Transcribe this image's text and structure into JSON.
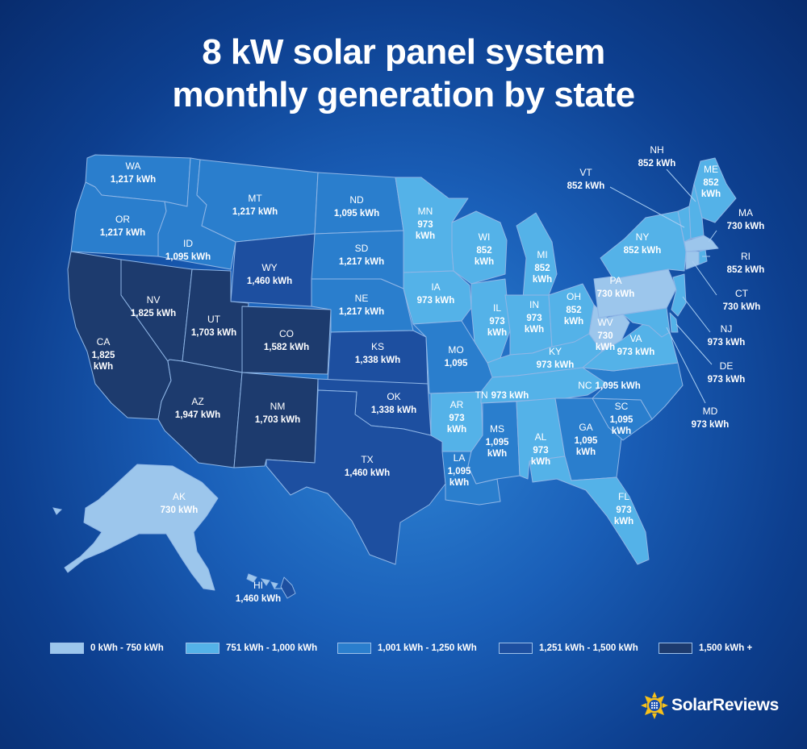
{
  "title": {
    "line1": "8 kW solar panel system",
    "line2": "monthly generation by state"
  },
  "colors": {
    "c1": "#9cc6ec",
    "c2": "#54b2e8",
    "c3": "#2a7ecd",
    "c4": "#1d4fa0",
    "c5": "#1d3b6e",
    "background": "#1a5fb8"
  },
  "legend": [
    {
      "label": "0 kWh  - 750 kWh",
      "bin": "c1"
    },
    {
      "label": "751 kWh - 1,000 kWh",
      "bin": "c2"
    },
    {
      "label": "1,001 kWh  - 1,250 kWh",
      "bin": "c3"
    },
    {
      "label": "1,251 kWh  - 1,500 kWh",
      "bin": "c4"
    },
    {
      "label": "1,500 kWh +",
      "bin": "c5"
    }
  ],
  "states": {
    "WA": {
      "abbr": "WA",
      "value": "1,217 kWh",
      "bin": "c3"
    },
    "OR": {
      "abbr": "OR",
      "value": "1,217 kWh",
      "bin": "c3"
    },
    "CA": {
      "abbr": "CA",
      "value_lines": [
        "1,825",
        "kWh"
      ],
      "bin": "c5"
    },
    "ID": {
      "abbr": "ID",
      "value": "1,095 kWh",
      "bin": "c3"
    },
    "NV": {
      "abbr": "NV",
      "value": "1,825 kWh",
      "bin": "c5"
    },
    "MT": {
      "abbr": "MT",
      "value": "1,217 kWh",
      "bin": "c3"
    },
    "WY": {
      "abbr": "WY",
      "value": "1,460 kWh",
      "bin": "c4"
    },
    "UT": {
      "abbr": "UT",
      "value": "1,703 kWh",
      "bin": "c5"
    },
    "CO": {
      "abbr": "CO",
      "value": "1,582 kWh",
      "bin": "c5"
    },
    "AZ": {
      "abbr": "AZ",
      "value": "1,947 kWh",
      "bin": "c5"
    },
    "NM": {
      "abbr": "NM",
      "value": "1,703 kWh",
      "bin": "c5"
    },
    "ND": {
      "abbr": "ND",
      "value": "1,095 kWh",
      "bin": "c3"
    },
    "SD": {
      "abbr": "SD",
      "value": "1,217 kWh",
      "bin": "c3"
    },
    "NE": {
      "abbr": "NE",
      "value": "1,217 kWh",
      "bin": "c3"
    },
    "KS": {
      "abbr": "KS",
      "value": "1,338 kWh",
      "bin": "c4"
    },
    "OK": {
      "abbr": "OK",
      "value": "1,338 kWh",
      "bin": "c4"
    },
    "TX": {
      "abbr": "TX",
      "value": "1,460 kWh",
      "bin": "c4"
    },
    "MN": {
      "abbr": "MN",
      "value_lines": [
        "973",
        "kWh"
      ],
      "bin": "c2"
    },
    "IA": {
      "abbr": "IA",
      "value": "973 kWh",
      "bin": "c2"
    },
    "MO": {
      "abbr": "MO",
      "value": "1,095",
      "bin": "c3"
    },
    "AR": {
      "abbr": "AR",
      "value_lines": [
        "973",
        "kWh"
      ],
      "bin": "c2"
    },
    "LA": {
      "abbr": "LA",
      "value_lines": [
        "1,095",
        "kWh"
      ],
      "bin": "c3"
    },
    "WI": {
      "abbr": "WI",
      "value_lines": [
        "852",
        "kWh"
      ],
      "bin": "c2"
    },
    "IL": {
      "abbr": "IL",
      "value_lines": [
        "973",
        "kWh"
      ],
      "bin": "c2"
    },
    "MI": {
      "abbr": "MI",
      "value_lines": [
        "852",
        "kWh"
      ],
      "bin": "c2"
    },
    "IN": {
      "abbr": "IN",
      "value_lines": [
        "973",
        "kWh"
      ],
      "bin": "c2"
    },
    "OH": {
      "abbr": "OH",
      "value_lines": [
        "852",
        "kWh"
      ],
      "bin": "c2"
    },
    "KY": {
      "abbr": "KY",
      "value": "973 kWh",
      "bin": "c2"
    },
    "TN": {
      "abbr": "TN",
      "value": "973 kWh",
      "bin": "c2"
    },
    "MS": {
      "abbr": "MS",
      "value_lines": [
        "1,095",
        "kWh"
      ],
      "bin": "c3"
    },
    "AL": {
      "abbr": "AL",
      "value_lines": [
        "973",
        "kWh"
      ],
      "bin": "c2"
    },
    "GA": {
      "abbr": "GA",
      "value_lines": [
        "1,095",
        "kWh"
      ],
      "bin": "c3"
    },
    "FL": {
      "abbr": "FL",
      "value_lines": [
        "973",
        "kWh"
      ],
      "bin": "c2"
    },
    "SC": {
      "abbr": "SC",
      "value_lines": [
        "1,095",
        "kWh"
      ],
      "bin": "c3"
    },
    "NC": {
      "abbr": "NC",
      "value": "1,095 kWh",
      "bin": "c3"
    },
    "VA": {
      "abbr": "VA",
      "value": "973 kWh",
      "bin": "c2"
    },
    "WV": {
      "abbr": "WV",
      "value_lines": [
        "730",
        "kWh"
      ],
      "bin": "c1"
    },
    "PA": {
      "abbr": "PA",
      "value": "730 kWh",
      "bin": "c1"
    },
    "NY": {
      "abbr": "NY",
      "value": "852 kWh",
      "bin": "c2"
    },
    "VT": {
      "abbr": "VT",
      "value": "852 kWh",
      "bin": "c2"
    },
    "NH": {
      "abbr": "NH",
      "value": "852 kWh",
      "bin": "c2"
    },
    "ME": {
      "abbr": "ME",
      "value_lines": [
        "852",
        "kWh"
      ],
      "bin": "c2"
    },
    "MA": {
      "abbr": "MA",
      "value": "730 kWh",
      "bin": "c1"
    },
    "RI": {
      "abbr": "RI",
      "value": "852 kWh",
      "bin": "c2"
    },
    "CT": {
      "abbr": "CT",
      "value": "730 kWh",
      "bin": "c1"
    },
    "NJ": {
      "abbr": "NJ",
      "value": "973 kWh",
      "bin": "c2"
    },
    "DE": {
      "abbr": "DE",
      "value": "973 kWh",
      "bin": "c2"
    },
    "MD": {
      "abbr": "MD",
      "value": "973 kWh",
      "bin": "c2"
    },
    "AK": {
      "abbr": "AK",
      "value": "730 kWh",
      "bin": "c1"
    },
    "HI": {
      "abbr": "HI",
      "value": "1,460 kWh",
      "bin": "c4"
    }
  },
  "brand": {
    "name": "SolarReviews",
    "icon": "sun-logo-icon"
  }
}
